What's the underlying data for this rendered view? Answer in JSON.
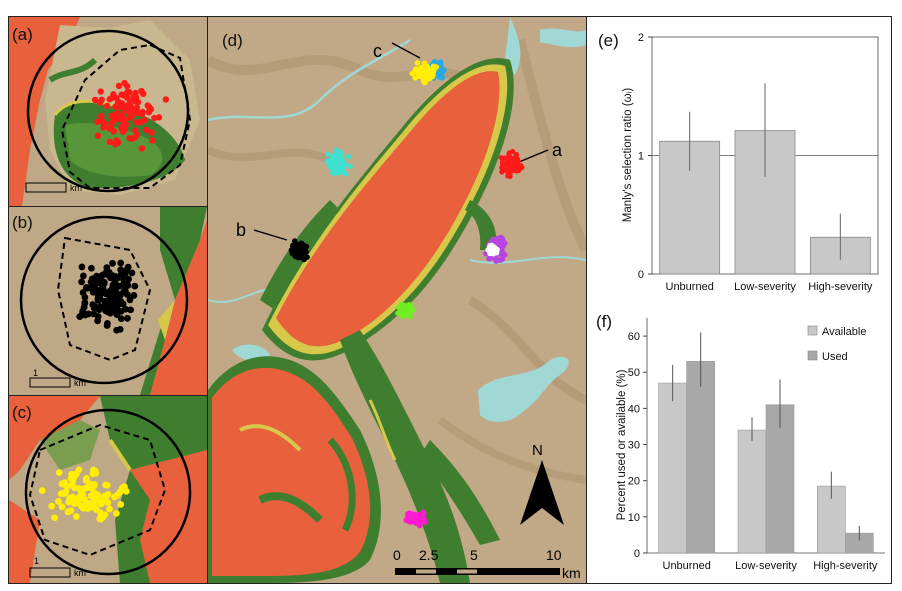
{
  "panels": {
    "a": "(a)",
    "b": "(b)",
    "c": "(c)",
    "d": "(d)",
    "e": "(e)",
    "f": "(f)"
  },
  "inset_scale": {
    "unit": "km",
    "one": "1"
  },
  "map_d": {
    "site_labels": [
      "a",
      "b",
      "c"
    ],
    "north": "N",
    "scale_ticks": [
      "0",
      "2.5",
      "5",
      "10"
    ],
    "scale_unit": "km"
  },
  "colors": {
    "high_severity": "#e8603c",
    "low_severity": "#d8c84a",
    "unburned": "#3f7e2e",
    "terrain": "#bfa886",
    "water": "#9fd8d4",
    "bar": "#c8c8c8",
    "bar_used": "#a8a8a8"
  },
  "chart_data": [
    {
      "type": "bar",
      "panel": "(e)",
      "categories": [
        "Unburned",
        "Low-severity",
        "High-severity"
      ],
      "values": [
        1.12,
        1.21,
        0.31
      ],
      "errors": [
        [
          0.87,
          1.37
        ],
        [
          0.82,
          1.61
        ],
        [
          0.12,
          0.51
        ]
      ],
      "ylabel": "Manly's selection ratio (ωᵢ)",
      "ylim": [
        0,
        2
      ],
      "yticks": [
        "0",
        "1",
        "2"
      ],
      "reference_line": 1
    },
    {
      "type": "bar",
      "panel": "(f)",
      "categories": [
        "Unburned",
        "Low-severity",
        "High-severity"
      ],
      "series": [
        {
          "name": "Available",
          "values": [
            47,
            34,
            18.5
          ],
          "errors": [
            [
              42,
              52
            ],
            [
              31,
              37.5
            ],
            [
              15,
              22.5
            ]
          ]
        },
        {
          "name": "Used",
          "values": [
            53,
            41,
            5.5
          ],
          "errors": [
            [
              46,
              61
            ],
            [
              34.5,
              48
            ],
            [
              3.5,
              7.5
            ]
          ]
        }
      ],
      "ylabel": "Percent used or available (%)",
      "ylim": [
        0,
        65
      ],
      "yticks": [
        "0",
        "10",
        "20",
        "30",
        "40",
        "50",
        "60"
      ],
      "legend": "top-right"
    }
  ]
}
